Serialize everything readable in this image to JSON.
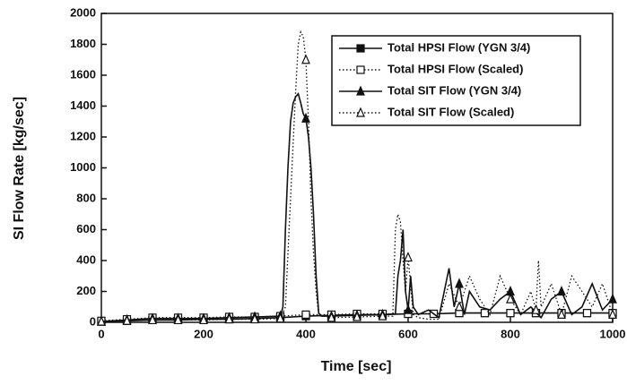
{
  "chart_data": {
    "type": "line",
    "x_label": "Time [sec]",
    "y_label": "SI Flow Rate [kg/sec]",
    "xlim": [
      0,
      1000
    ],
    "ylim": [
      0,
      2000
    ],
    "xticks": [
      0,
      200,
      400,
      600,
      800,
      1000
    ],
    "yticks": [
      0,
      200,
      400,
      600,
      800,
      1000,
      1200,
      1400,
      1600,
      1800,
      2000
    ],
    "legend": "upper right",
    "series": [
      {
        "name": "Total HPSI Flow (YGN 3/4)",
        "color": "#111111",
        "dash": "solid",
        "marker": "filled-square",
        "x": [
          0,
          50,
          100,
          150,
          200,
          250,
          300,
          350,
          400,
          450,
          500,
          550,
          600,
          650,
          700,
          750,
          800,
          850,
          900,
          950,
          1000
        ],
        "values": [
          5,
          10,
          15,
          15,
          20,
          20,
          25,
          30,
          40,
          45,
          50,
          50,
          55,
          55,
          60,
          60,
          60,
          60,
          60,
          60,
          60
        ]
      },
      {
        "name": "Total HPSI Flow (Scaled)",
        "color": "#111111",
        "dash": "dotted",
        "marker": "open-square",
        "x": [
          0,
          50,
          100,
          150,
          200,
          250,
          300,
          350,
          400,
          450,
          500,
          550,
          600,
          650,
          700,
          750,
          800,
          850,
          900,
          950,
          1000
        ],
        "values": [
          10,
          20,
          30,
          30,
          30,
          35,
          35,
          40,
          50,
          50,
          55,
          55,
          55,
          55,
          60,
          60,
          60,
          60,
          60,
          60,
          60
        ]
      },
      {
        "name": "Total SIT Flow (YGN 3/4)",
        "color": "#111111",
        "dash": "solid",
        "marker": "filled-triangle",
        "x": [
          0,
          50,
          100,
          150,
          200,
          250,
          300,
          350,
          355,
          360,
          365,
          370,
          375,
          380,
          385,
          390,
          395,
          400,
          405,
          410,
          415,
          420,
          425,
          430,
          450,
          500,
          550,
          575,
          580,
          585,
          590,
          595,
          600,
          605,
          610,
          620,
          640,
          660,
          680,
          690,
          700,
          710,
          720,
          740,
          760,
          780,
          800,
          820,
          840,
          860,
          880,
          900,
          920,
          940,
          960,
          980,
          1000
        ],
        "values": [
          5,
          15,
          25,
          25,
          25,
          30,
          35,
          40,
          100,
          600,
          1000,
          1300,
          1420,
          1460,
          1480,
          1420,
          1350,
          1320,
          1200,
          1000,
          700,
          300,
          60,
          40,
          40,
          45,
          50,
          55,
          300,
          400,
          600,
          200,
          80,
          300,
          100,
          50,
          80,
          30,
          350,
          100,
          250,
          50,
          200,
          100,
          80,
          150,
          200,
          50,
          100,
          30,
          150,
          200,
          50,
          100,
          250,
          80,
          150
        ]
      },
      {
        "name": "Total SIT Flow (Scaled)",
        "color": "#111111",
        "dash": "dotted",
        "marker": "open-triangle",
        "x": [
          0,
          50,
          100,
          150,
          200,
          250,
          300,
          350,
          360,
          370,
          380,
          385,
          390,
          395,
          400,
          405,
          410,
          415,
          420,
          425,
          450,
          500,
          550,
          570,
          575,
          580,
          585,
          590,
          595,
          600,
          610,
          620,
          640,
          660,
          680,
          700,
          720,
          740,
          760,
          780,
          800,
          820,
          840,
          850,
          855,
          860,
          880,
          900,
          920,
          940,
          960,
          980,
          1000
        ],
        "values": [
          5,
          10,
          15,
          15,
          15,
          20,
          20,
          25,
          100,
          800,
          1500,
          1800,
          1880,
          1850,
          1700,
          1300,
          800,
          450,
          200,
          50,
          30,
          35,
          40,
          40,
          600,
          700,
          650,
          400,
          200,
          420,
          50,
          30,
          20,
          20,
          250,
          100,
          300,
          150,
          50,
          300,
          150,
          50,
          200,
          80,
          400,
          100,
          250,
          50,
          300,
          200,
          100,
          250,
          50
        ]
      }
    ]
  }
}
